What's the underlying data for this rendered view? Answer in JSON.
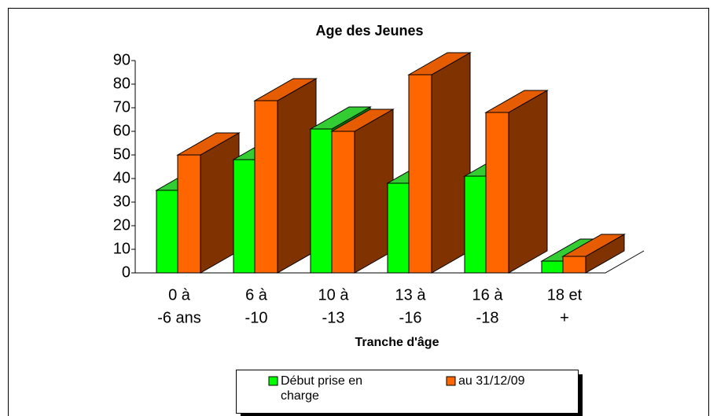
{
  "chart_data": {
    "type": "bar3d",
    "title": "Age des Jeunes",
    "categories": [
      [
        "0 à",
        "-6 ans"
      ],
      [
        "6 à",
        "-10"
      ],
      [
        "10 à",
        "-13"
      ],
      [
        "13 à",
        "-16"
      ],
      [
        "16 à",
        "-18"
      ],
      [
        "18 et",
        "+"
      ]
    ],
    "series": [
      {
        "name": "Début prise en charge",
        "color": "#00ff00",
        "values": [
          35,
          48,
          61,
          38,
          41,
          5
        ]
      },
      {
        "name": "au 31/12/09",
        "color": "#ff6600",
        "values": [
          50,
          73,
          60,
          84,
          68,
          7
        ]
      }
    ],
    "x_label": "Tranche d'âge",
    "ylim": [
      0,
      90
    ],
    "yticks": [
      0,
      10,
      20,
      30,
      40,
      50,
      60,
      70,
      80,
      90
    ]
  }
}
